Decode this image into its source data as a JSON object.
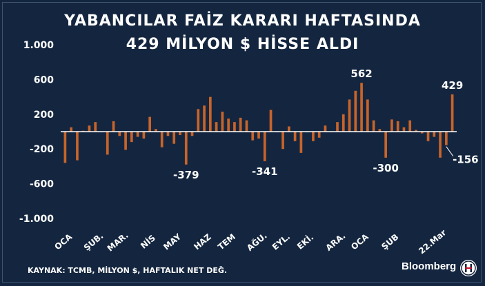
{
  "title_line1": "YABANCILAR FAİZ KARARI HAFTASINDA",
  "title_line2": "429 MİLYON $ HİSSE ALDI",
  "footer": "KAYNAK: TCMB, MİLYON $, HAFTALIK NET DEĞ.",
  "brand": "Bloomberg",
  "colors": {
    "background": "#14263f",
    "bar": "#c8642a",
    "text": "#ffffff",
    "axis": "#ffffff"
  },
  "chart_data": {
    "type": "bar",
    "ylim": [
      -1000,
      1000
    ],
    "yticks": [
      1000,
      600,
      200,
      -200,
      -600,
      -1000
    ],
    "ytick_labels": [
      "1.000",
      "600",
      "200",
      "-200",
      "-600",
      "-1.000"
    ],
    "xtick_labels": [
      {
        "label": "OCA",
        "week": 0
      },
      {
        "label": "ŞUB.",
        "week": 5
      },
      {
        "label": "MAR.",
        "week": 9
      },
      {
        "label": "NİS",
        "week": 14
      },
      {
        "label": "MAY",
        "week": 18
      },
      {
        "label": "HAZ",
        "week": 23
      },
      {
        "label": "TEM",
        "week": 27
      },
      {
        "label": "AĞU.",
        "week": 32
      },
      {
        "label": "EYL.",
        "week": 36
      },
      {
        "label": "EKİ.",
        "week": 40
      },
      {
        "label": "ARA.",
        "week": 45
      },
      {
        "label": "OCA",
        "week": 49
      },
      {
        "label": "ŞUB",
        "week": 54
      },
      {
        "label": "22.Mar",
        "week": 61
      }
    ],
    "values": [
      -360,
      50,
      -330,
      10,
      70,
      110,
      0,
      -265,
      120,
      -50,
      -210,
      -120,
      -60,
      -80,
      170,
      30,
      -180,
      -50,
      -140,
      -40,
      -379,
      -50,
      260,
      300,
      400,
      110,
      230,
      150,
      110,
      160,
      130,
      -100,
      -80,
      -341,
      250,
      0,
      -200,
      60,
      -110,
      -245,
      0,
      -110,
      -70,
      70,
      0,
      110,
      200,
      370,
      470,
      562,
      370,
      130,
      30,
      -300,
      140,
      120,
      50,
      130,
      20,
      -20,
      -110,
      -60,
      -300,
      -156,
      429
    ],
    "annotations": [
      {
        "week": 20,
        "text": "-379"
      },
      {
        "week": 33,
        "text": "-341"
      },
      {
        "week": 49,
        "text": "562"
      },
      {
        "week": 53,
        "text": "-300"
      },
      {
        "week": 63,
        "text": "-156"
      },
      {
        "week": 64,
        "text": "429"
      }
    ]
  }
}
